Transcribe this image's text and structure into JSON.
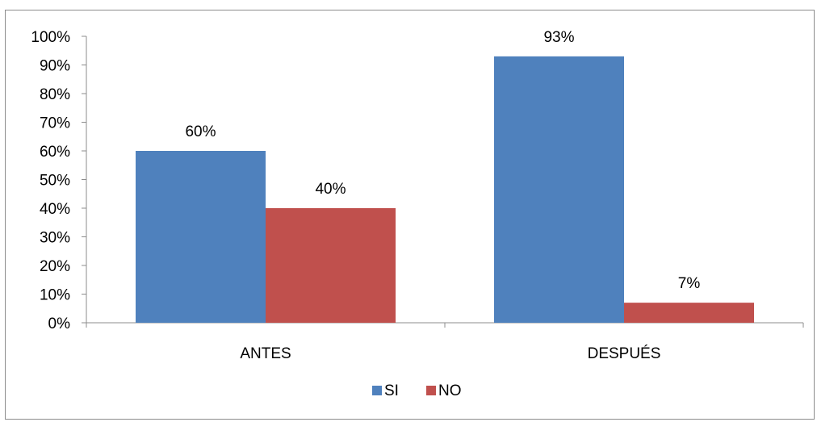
{
  "chart_data": {
    "type": "bar",
    "title": "",
    "xlabel": "",
    "ylabel": "",
    "categories": [
      "ANTES",
      "DESPUÉS"
    ],
    "series": [
      {
        "name": "SI",
        "values": [
          60,
          93
        ],
        "color": "#4F81BD"
      },
      {
        "name": "NO",
        "values": [
          40,
          7
        ],
        "color": "#C0504D"
      }
    ],
    "data_labels": [
      [
        "60%",
        "93%"
      ],
      [
        "40%",
        "7%"
      ]
    ],
    "ylim": [
      0,
      100
    ],
    "y_ticks": [
      0,
      10,
      20,
      30,
      40,
      50,
      60,
      70,
      80,
      90,
      100
    ],
    "y_tick_labels": [
      "0%",
      "10%",
      "20%",
      "30%",
      "40%",
      "50%",
      "60%",
      "70%",
      "80%",
      "90%",
      "100%"
    ],
    "grid": false,
    "legend_position": "bottom",
    "axis_color": "#8c8c8c"
  }
}
